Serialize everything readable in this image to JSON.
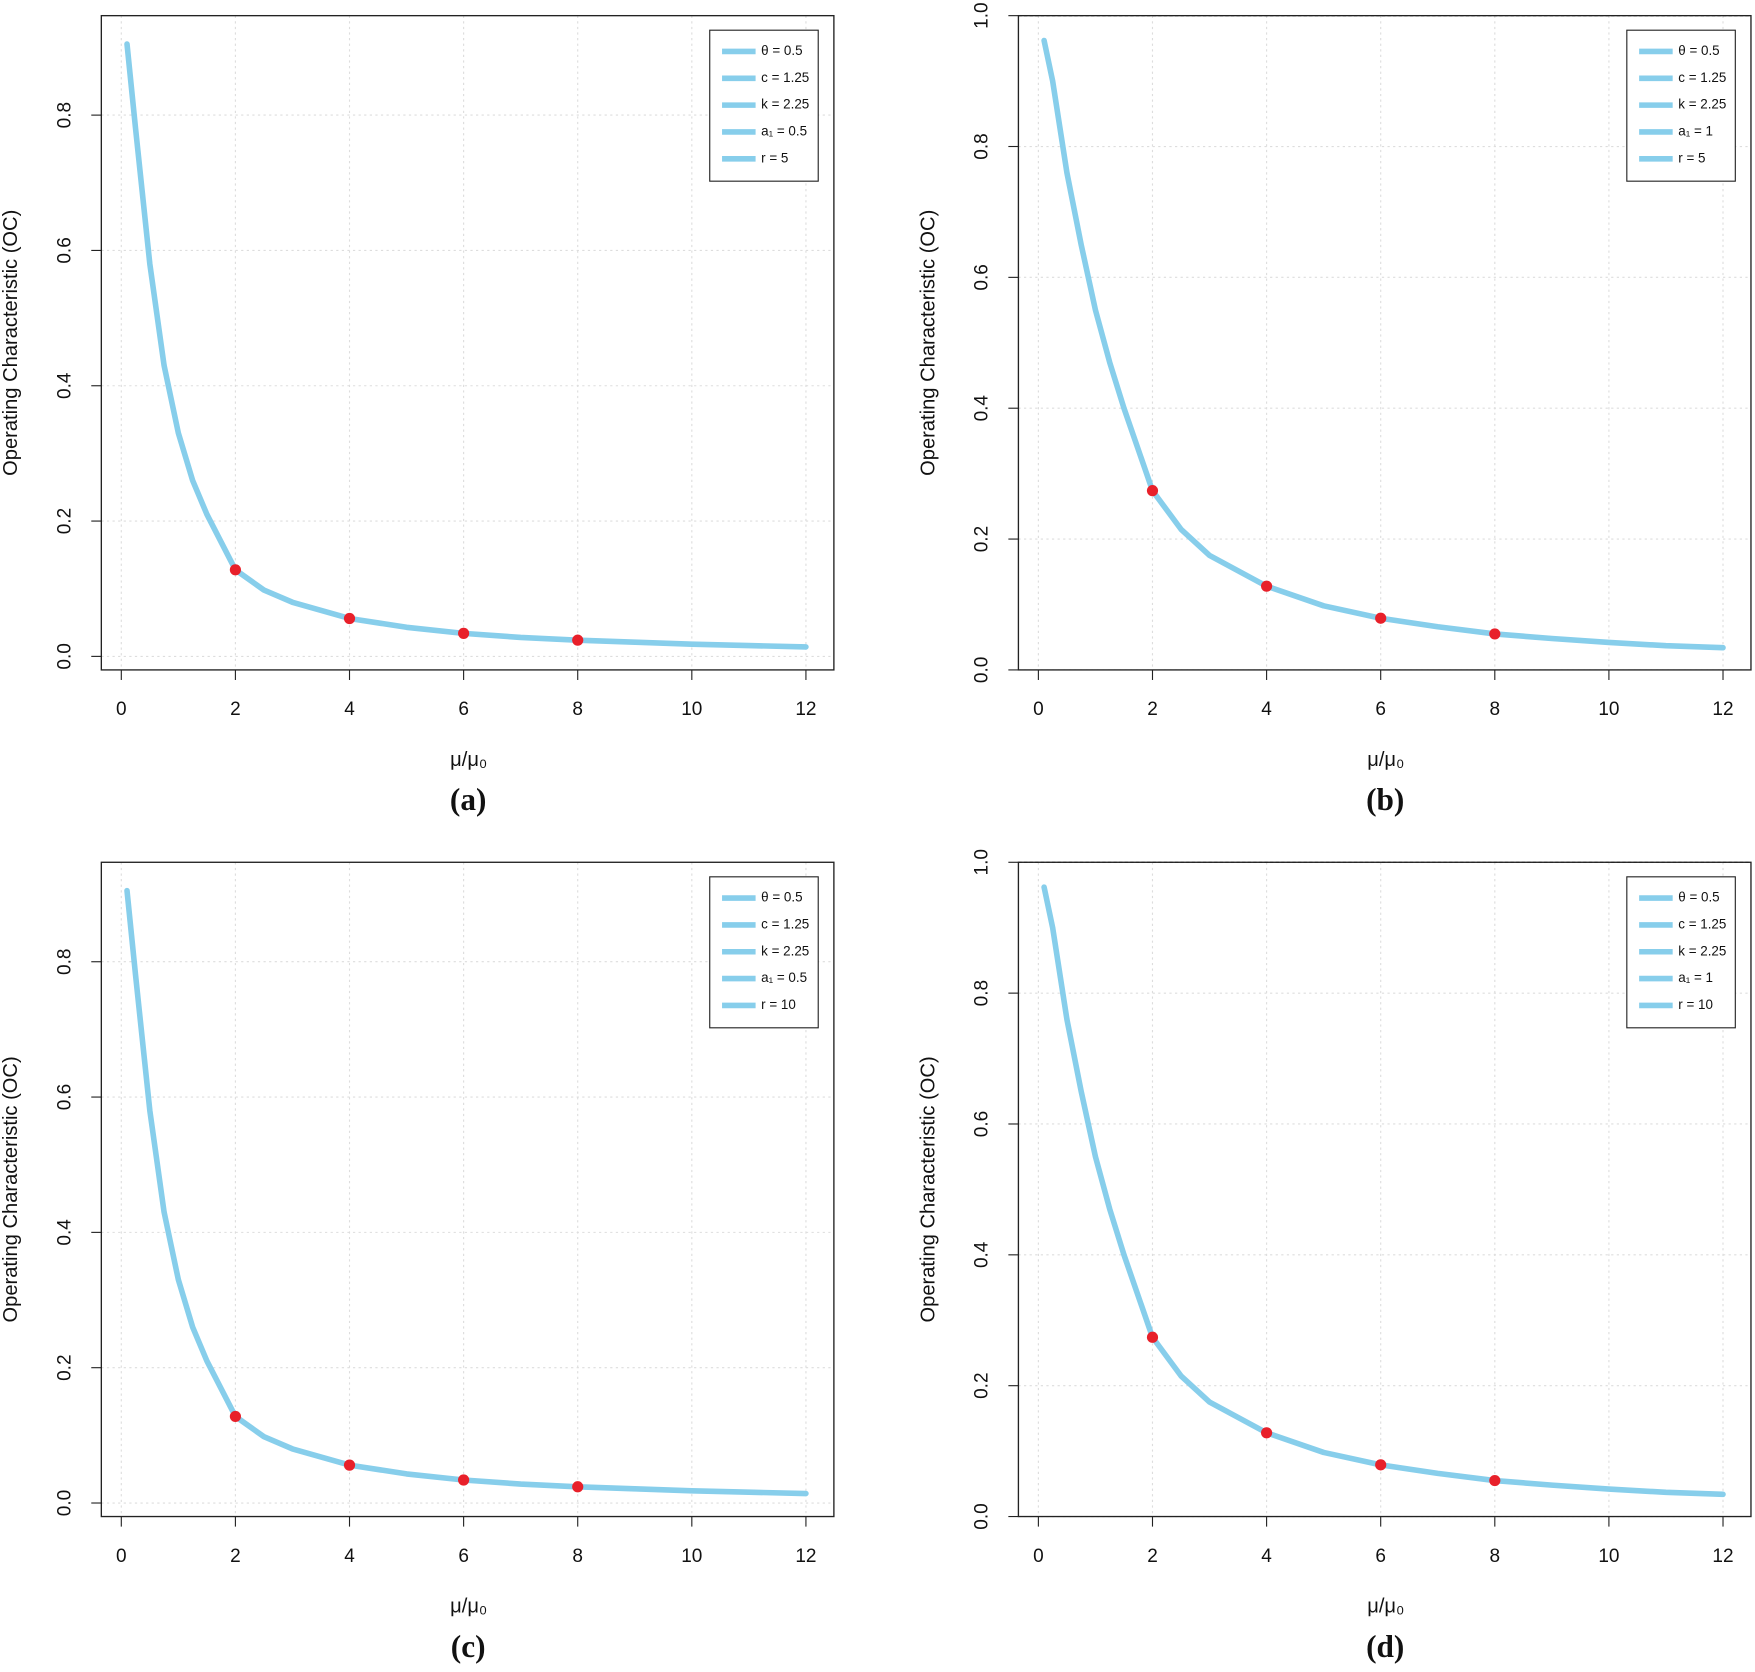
{
  "chart_data": [
    {
      "type": "line",
      "caption": "(a)",
      "x_label": "μ/μ₀",
      "y_label": "Operating Characteristic (OC)",
      "x": [
        0.1,
        0.25,
        0.5,
        0.75,
        1,
        1.25,
        1.5,
        2,
        2.5,
        3,
        4,
        5,
        6,
        7,
        8,
        9,
        10,
        11,
        12
      ],
      "series": [
        {
          "color": "#87ceeb",
          "values": [
            0.905,
            0.78,
            0.58,
            0.43,
            0.33,
            0.26,
            0.21,
            0.128,
            0.098,
            0.08,
            0.056,
            0.043,
            0.034,
            0.028,
            0.024,
            0.021,
            0.018,
            0.016,
            0.014
          ]
        }
      ],
      "points": {
        "color": "#e8202a",
        "x": [
          2,
          4,
          6,
          8
        ],
        "values": [
          0.128,
          0.056,
          0.034,
          0.024
        ]
      },
      "legend": [
        "θ = 0.5",
        "c = 1.25",
        "k = 2.25",
        "a₁ = 0.5",
        "r = 5"
      ],
      "xlim": [
        -0.35,
        12.49
      ],
      "ylim": [
        -0.02,
        0.947
      ],
      "xticks": [
        0,
        2,
        4,
        6,
        8,
        10,
        12
      ],
      "yticks": [
        {
          "value": 0,
          "label": "0.0"
        },
        0.2,
        0.4,
        0.6,
        0.8
      ],
      "grid": true
    },
    {
      "type": "line",
      "caption": "(b)",
      "x_label": "μ/μ₀",
      "y_label": "Operating Characteristic (OC)",
      "x": [
        0.1,
        0.25,
        0.5,
        0.75,
        1,
        1.25,
        1.5,
        2,
        2.5,
        3,
        4,
        5,
        6,
        7,
        8,
        9,
        10,
        11,
        12
      ],
      "series": [
        {
          "color": "#87ceeb",
          "values": [
            0.962,
            0.9,
            0.76,
            0.65,
            0.55,
            0.47,
            0.4,
            0.274,
            0.215,
            0.175,
            0.128,
            0.098,
            0.079,
            0.066,
            0.055,
            0.048,
            0.042,
            0.037,
            0.034
          ]
        }
      ],
      "points": {
        "color": "#e8202a",
        "x": [
          2,
          4,
          6,
          8
        ],
        "values": [
          0.274,
          0.128,
          0.079,
          0.055
        ]
      },
      "legend": [
        "θ = 0.5",
        "c = 1.25",
        "k = 2.25",
        "a₁ = 1",
        "r = 5"
      ],
      "xlim": [
        -0.35,
        12.49
      ],
      "ylim": [
        0,
        1
      ],
      "xticks": [
        0,
        2,
        4,
        6,
        8,
        10,
        12
      ],
      "yticks": [
        {
          "value": 0,
          "label": "0.0"
        },
        0.2,
        0.4,
        0.6,
        0.8,
        {
          "value": 1,
          "label": "1.0"
        }
      ],
      "grid": true,
      "reference_line": 1
    },
    {
      "type": "line",
      "caption": "(c)",
      "x_label": "μ/μ₀",
      "y_label": "Operating Characteristic (OC)",
      "x": [
        0.1,
        0.25,
        0.5,
        0.75,
        1,
        1.25,
        1.5,
        2,
        2.5,
        3,
        4,
        5,
        6,
        7,
        8,
        9,
        10,
        11,
        12
      ],
      "series": [
        {
          "color": "#87ceeb",
          "values": [
            0.905,
            0.78,
            0.58,
            0.43,
            0.33,
            0.26,
            0.21,
            0.128,
            0.098,
            0.08,
            0.056,
            0.043,
            0.034,
            0.028,
            0.024,
            0.021,
            0.018,
            0.016,
            0.014
          ]
        }
      ],
      "points": {
        "color": "#e8202a",
        "x": [
          2,
          4,
          6,
          8
        ],
        "values": [
          0.128,
          0.056,
          0.034,
          0.024
        ]
      },
      "legend": [
        "θ = 0.5",
        "c = 1.25",
        "k = 2.25",
        "a₁ = 0.5",
        "r = 10"
      ],
      "xlim": [
        -0.35,
        12.49
      ],
      "ylim": [
        -0.02,
        0.947
      ],
      "xticks": [
        0,
        2,
        4,
        6,
        8,
        10,
        12
      ],
      "yticks": [
        {
          "value": 0,
          "label": "0.0"
        },
        0.2,
        0.4,
        0.6,
        0.8
      ],
      "grid": true
    },
    {
      "type": "line",
      "caption": "(d)",
      "x_label": "μ/μ₀",
      "y_label": "Operating Characteristic (OC)",
      "x": [
        0.1,
        0.25,
        0.5,
        0.75,
        1,
        1.25,
        1.5,
        2,
        2.5,
        3,
        4,
        5,
        6,
        7,
        8,
        9,
        10,
        11,
        12
      ],
      "series": [
        {
          "color": "#87ceeb",
          "values": [
            0.962,
            0.9,
            0.76,
            0.65,
            0.55,
            0.47,
            0.4,
            0.274,
            0.215,
            0.175,
            0.128,
            0.098,
            0.079,
            0.066,
            0.055,
            0.048,
            0.042,
            0.037,
            0.034
          ]
        }
      ],
      "points": {
        "color": "#e8202a",
        "x": [
          2,
          4,
          6,
          8
        ],
        "values": [
          0.274,
          0.128,
          0.079,
          0.055
        ]
      },
      "legend": [
        "θ = 0.5",
        "c = 1.25",
        "k = 2.25",
        "a₁ = 1",
        "r = 10"
      ],
      "xlim": [
        -0.35,
        12.49
      ],
      "ylim": [
        0,
        1
      ],
      "xticks": [
        0,
        2,
        4,
        6,
        8,
        10,
        12
      ],
      "yticks": [
        {
          "value": 0,
          "label": "0.0"
        },
        0.2,
        0.4,
        0.6,
        0.8,
        {
          "value": 1,
          "label": "1.0"
        }
      ],
      "grid": true,
      "reference_line": 1
    }
  ]
}
